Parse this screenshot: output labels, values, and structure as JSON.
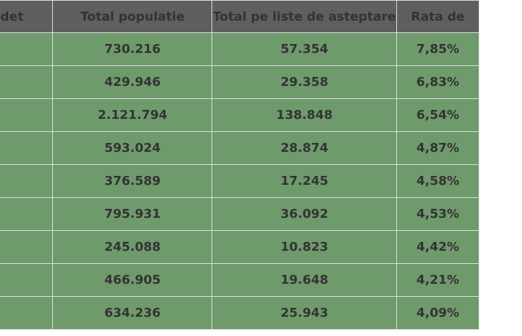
{
  "table": {
    "headers": {
      "judet": "Judet",
      "total_populatie": "Total populatie",
      "total_liste": "Total pe liste de asteptare",
      "rata": "Rata de"
    },
    "rows": [
      {
        "judet": "",
        "total_populatie": "730.216",
        "total_liste": "57.354",
        "rata": "7,85%"
      },
      {
        "judet": "",
        "total_populatie": "429.946",
        "total_liste": "29.358",
        "rata": "6,83%"
      },
      {
        "judet": "",
        "total_populatie": "2.121.794",
        "total_liste": "138.848",
        "rata": "6,54%"
      },
      {
        "judet": "",
        "total_populatie": "593.024",
        "total_liste": "28.874",
        "rata": "4,87%"
      },
      {
        "judet": "",
        "total_populatie": "376.589",
        "total_liste": "17.245",
        "rata": "4,58%"
      },
      {
        "judet": "",
        "total_populatie": "795.931",
        "total_liste": "36.092",
        "rata": "4,53%"
      },
      {
        "judet": "",
        "total_populatie": "245.088",
        "total_liste": "10.823",
        "rata": "4,42%"
      },
      {
        "judet": "",
        "total_populatie": "466.905",
        "total_liste": "19.648",
        "rata": "4,21%"
      },
      {
        "judet": "",
        "total_populatie": "634.236",
        "total_liste": "25.943",
        "rata": "4,09%"
      }
    ]
  },
  "colors": {
    "header_bg": "#5f5f5f",
    "row_bg": "#6f9a6c",
    "border": "#e4e4e4",
    "text": "#333333"
  }
}
